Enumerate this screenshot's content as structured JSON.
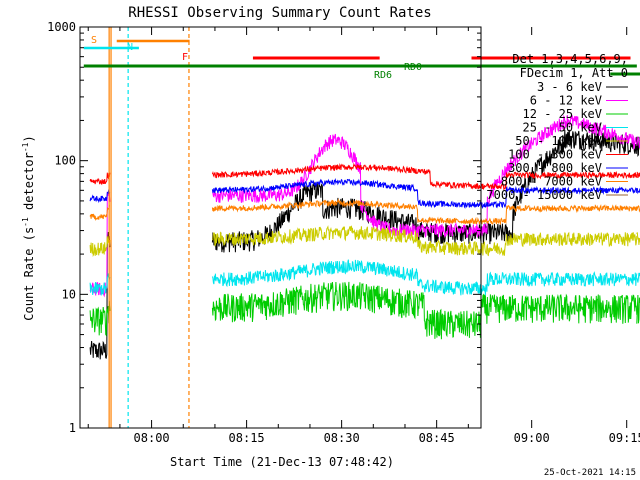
{
  "chart_data": {
    "type": "line",
    "title": "RHESSI Observing Summary Count Rates",
    "xlabel": "Start Time (21-Dec-13 07:48:42)",
    "ylabel_main": "Count Rate (s",
    "ylabel_sup1": "-1",
    "ylabel_mid": " detector",
    "ylabel_sup2": "-1",
    "ylabel_end": ")",
    "y_scale": "log",
    "ylim": [
      1,
      1000
    ],
    "xlim_min": [
      468.7,
      532
    ],
    "y_ticks": [
      {
        "v": 1,
        "label": "1"
      },
      {
        "v": 10,
        "label": "10"
      },
      {
        "v": 100,
        "label": "100"
      },
      {
        "v": 1000,
        "label": "1000"
      }
    ],
    "x_ticks": [
      {
        "t": 480,
        "label": "08:00"
      },
      {
        "t": 495,
        "label": "08:15"
      },
      {
        "t": 510,
        "label": "08:30"
      },
      {
        "t": 525,
        "label": "08:45"
      },
      {
        "t": 540,
        "label": "09:00"
      },
      {
        "t": 555,
        "label": "09:15"
      }
    ],
    "legend_header": [
      "Det 1,3,4,5,6,9,",
      "FDecim 1, Att 0"
    ],
    "series": [
      {
        "name": "3 - 6 keV",
        "color": "#000000"
      },
      {
        "name": "6 - 12 keV",
        "color": "#ff00ff"
      },
      {
        "name": "12 - 25 keV",
        "color": "#00cc00"
      },
      {
        "name": "25 - 50 keV",
        "color": "#00e5ee"
      },
      {
        "name": "50 - 100 keV",
        "color": "#cccc00"
      },
      {
        "name": "100 - 300 keV",
        "color": "#ff0000"
      },
      {
        "name": "300 - 800 keV",
        "color": "#0000ff"
      },
      {
        "name": "800 - 7000 keV",
        "color": "#ff8000"
      },
      {
        "name": "7000 - 15000 keV",
        "color": "#996633"
      }
    ],
    "flags": [
      {
        "label": "S",
        "color": "#ff8000"
      },
      {
        "label": "N",
        "color": "#00e5ee"
      },
      {
        "label": "F",
        "color": "#ff0000"
      },
      {
        "label": "RD0",
        "color": "#008000"
      },
      {
        "label": "RD6",
        "color": "#008000"
      }
    ],
    "timestamp": "25-Oct-2021 14:15"
  }
}
